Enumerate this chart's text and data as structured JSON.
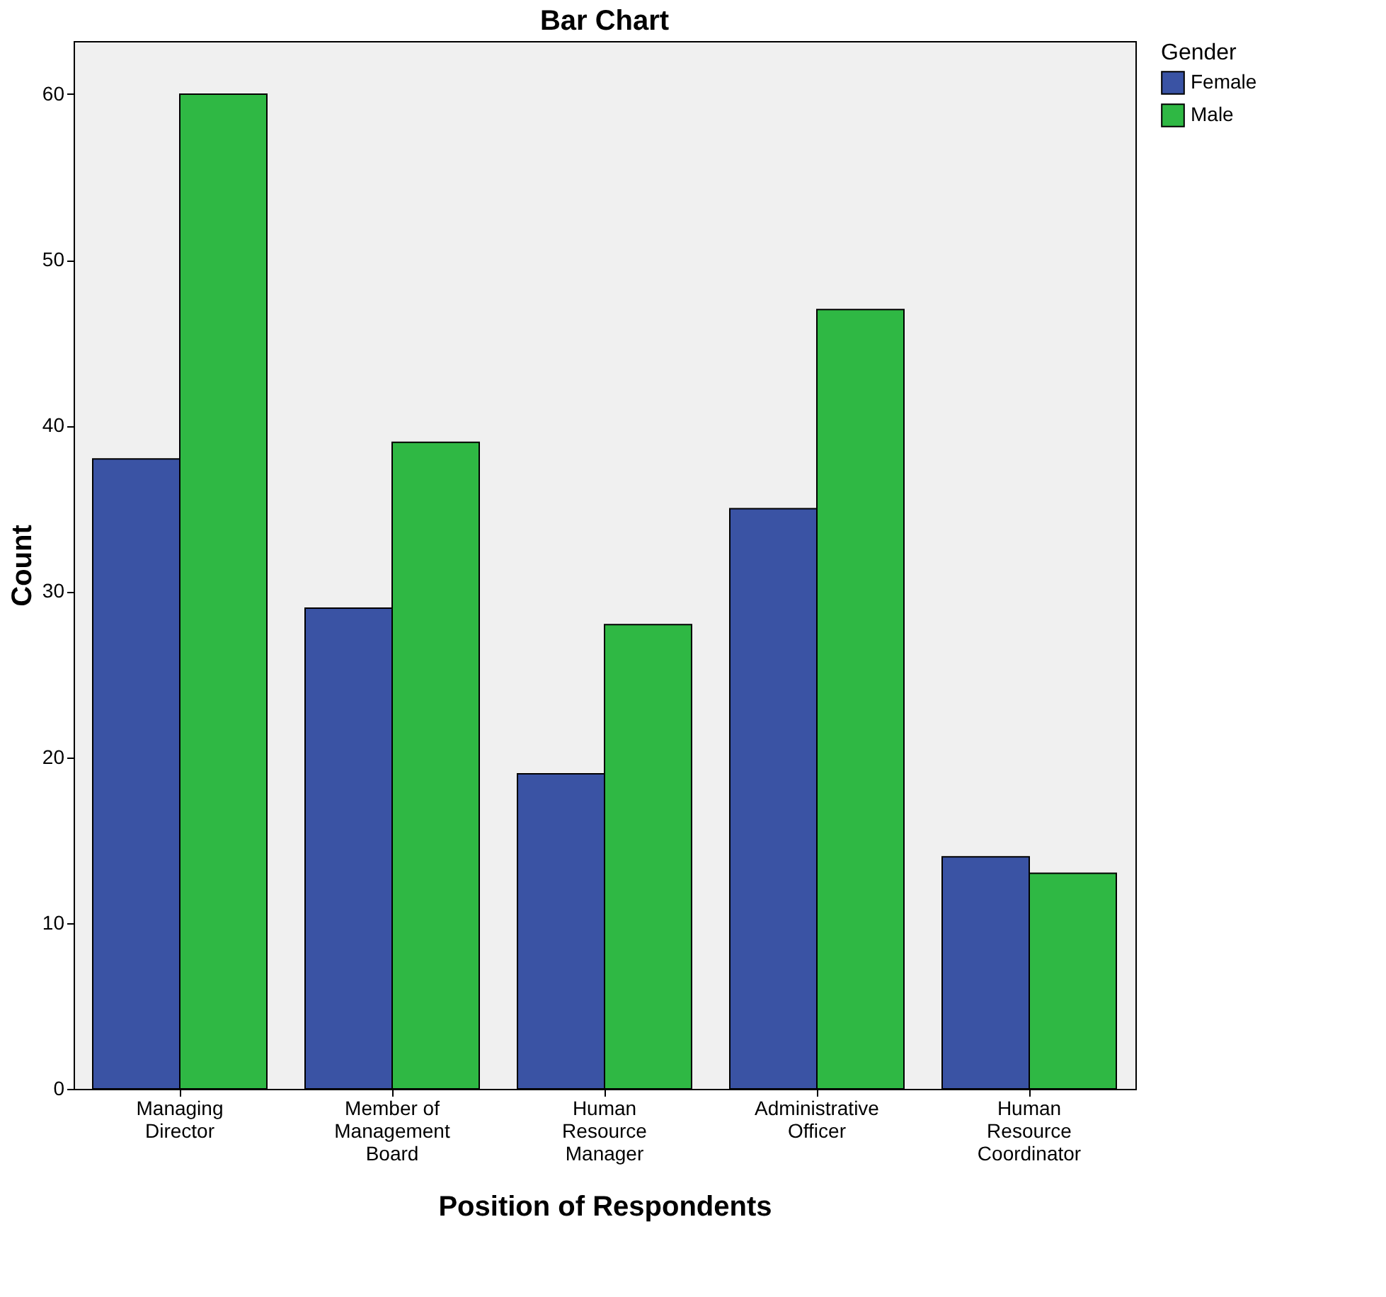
{
  "chart_data": {
    "type": "bar",
    "title": "Bar Chart",
    "xlabel": "Position of Respondents",
    "ylabel": "Count",
    "legend_title": "Gender",
    "categories": [
      "Managing\nDirector",
      "Member of\nManagement\nBoard",
      "Human\nResource\nManager",
      "Administrative\nOfficer",
      "Human\nResource\nCoordinator"
    ],
    "series": [
      {
        "name": "Female",
        "color": "#3a53a4",
        "values": [
          38,
          29,
          19,
          35,
          14
        ]
      },
      {
        "name": "Male",
        "color": "#2fb844",
        "values": [
          60,
          39,
          28,
          47,
          13
        ]
      }
    ],
    "ylim": [
      0,
      63.2
    ],
    "yticks": [
      0,
      10,
      20,
      30,
      40,
      50,
      60
    ],
    "grid": false,
    "legend": "top right"
  }
}
